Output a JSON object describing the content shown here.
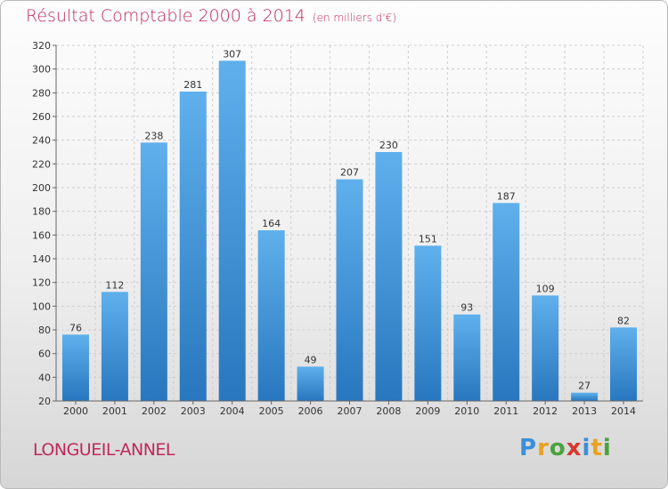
{
  "title": "Résultat Comptable 2000 à 2014",
  "subtitle": "(en milliers d'€)",
  "place": "LONGUEIL-ANNEL",
  "logo": {
    "letters": [
      "P",
      "r",
      "o",
      "x",
      "i",
      "t",
      "i"
    ],
    "colors": [
      "#3b8fd9",
      "#e8a21f",
      "#4aa33e",
      "#d9382c",
      "#3b8fd9",
      "#e8a21f",
      "#4aa33e"
    ]
  },
  "colors": {
    "title": "#c0285a",
    "bar_top": "#5fb0ec",
    "bar_bottom": "#2877bf"
  },
  "chart_data": {
    "type": "bar",
    "categories": [
      "2000",
      "2001",
      "2002",
      "2003",
      "2004",
      "2005",
      "2006",
      "2007",
      "2008",
      "2009",
      "2010",
      "2011",
      "2012",
      "2013",
      "2014"
    ],
    "values": [
      76,
      112,
      238,
      281,
      307,
      164,
      49,
      207,
      230,
      151,
      93,
      187,
      109,
      27,
      82
    ],
    "ylim": [
      20,
      320
    ],
    "yticks": [
      20,
      40,
      60,
      80,
      100,
      120,
      140,
      160,
      180,
      200,
      220,
      240,
      260,
      280,
      300,
      320
    ],
    "grid": true,
    "data_labels": true
  }
}
